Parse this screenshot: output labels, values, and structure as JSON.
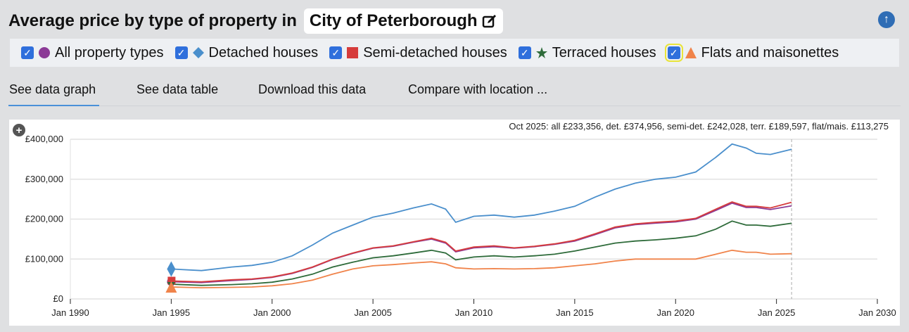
{
  "header": {
    "title": "Average price by type of property in",
    "location": "City of Peterborough",
    "edit_icon": "pencil-square-icon",
    "up_icon": "arrow-up-circle-icon"
  },
  "legend": [
    {
      "label": "All property types",
      "color": "#8b3a96",
      "marker": "circle",
      "checked": true
    },
    {
      "label": "Detached houses",
      "color": "#4a8fcc",
      "marker": "diamond",
      "checked": true
    },
    {
      "label": "Semi-detached houses",
      "color": "#d63c3c",
      "marker": "square",
      "checked": true
    },
    {
      "label": "Terraced houses",
      "color": "#2e6b3a",
      "marker": "star",
      "checked": true
    },
    {
      "label": "Flats and maisonettes",
      "color": "#f0834a",
      "marker": "triangle",
      "checked": true
    }
  ],
  "tabs": [
    "See data graph",
    "See data table",
    "Download this data",
    "Compare with location ..."
  ],
  "chart_data": {
    "type": "line",
    "annotation": "Oct 2025: all £233,356, det. £374,956, semi-det. £242,028, terr. £189,597, flat/mais. £113,275",
    "xlim": [
      1990,
      2030
    ],
    "ylim": [
      0,
      400000
    ],
    "x_ticks": [
      "Jan 1990",
      "Jan 1995",
      "Jan 2000",
      "Jan 2005",
      "Jan 2010",
      "Jan 2015",
      "Jan 2020",
      "Jan 2025",
      "Jan 2030"
    ],
    "y_ticks": [
      "£0",
      "£100,000",
      "£200,000",
      "£300,000",
      "£400,000"
    ],
    "grid": true,
    "x": [
      1995,
      1996.5,
      1998,
      1999,
      2000,
      2001,
      2002,
      2003,
      2004,
      2005,
      2006,
      2007,
      2007.9,
      2008.6,
      2009.1,
      2010,
      2011,
      2012,
      2013,
      2014,
      2015,
      2016,
      2017,
      2018,
      2019,
      2020,
      2021,
      2022,
      2022.8,
      2023.5,
      2024,
      2024.7,
      2025.75
    ],
    "series": [
      {
        "name": "All property types",
        "color": "#8b3a96",
        "values": [
          43000,
          41000,
          46000,
          49000,
          54000,
          64000,
          79000,
          99000,
          114000,
          127000,
          132000,
          142000,
          150000,
          140000,
          118000,
          128000,
          131000,
          127000,
          131000,
          137000,
          145000,
          161000,
          178000,
          186000,
          190000,
          193000,
          200000,
          222000,
          240000,
          229000,
          229000,
          224000,
          233356
        ]
      },
      {
        "name": "Detached houses",
        "color": "#4a8fcc",
        "values": [
          75000,
          71000,
          80000,
          84000,
          92000,
          108000,
          135000,
          165000,
          185000,
          205000,
          215000,
          228000,
          238000,
          225000,
          192000,
          207000,
          210000,
          205000,
          210000,
          220000,
          232000,
          255000,
          275000,
          290000,
          300000,
          305000,
          318000,
          355000,
          388000,
          378000,
          365000,
          362000,
          374956
        ]
      },
      {
        "name": "Semi-detached houses",
        "color": "#d63c3c",
        "values": [
          45000,
          43000,
          48000,
          50000,
          55000,
          65000,
          80000,
          100000,
          115000,
          128000,
          133000,
          143000,
          152000,
          142000,
          120000,
          130000,
          133000,
          128000,
          132000,
          138000,
          147000,
          163000,
          180000,
          188000,
          192000,
          195000,
          202000,
          225000,
          243000,
          232000,
          232000,
          228000,
          242028
        ]
      },
      {
        "name": "Terraced houses",
        "color": "#2e6b3a",
        "values": [
          37000,
          34000,
          36000,
          38000,
          42000,
          50000,
          62000,
          80000,
          92000,
          103000,
          108000,
          115000,
          122000,
          115000,
          98000,
          105000,
          108000,
          105000,
          108000,
          112000,
          120000,
          130000,
          140000,
          145000,
          148000,
          152000,
          158000,
          175000,
          195000,
          185000,
          185000,
          182000,
          189597
        ]
      },
      {
        "name": "Flats and maisonettes",
        "color": "#f0834a",
        "values": [
          30000,
          28000,
          29000,
          30000,
          33000,
          38000,
          47000,
          62000,
          75000,
          83000,
          86000,
          90000,
          93000,
          88000,
          78000,
          75000,
          76000,
          75000,
          76000,
          78000,
          83000,
          88000,
          95000,
          100000,
          100000,
          100000,
          100000,
          112000,
          122000,
          117000,
          117000,
          112000,
          113275
        ]
      }
    ]
  }
}
